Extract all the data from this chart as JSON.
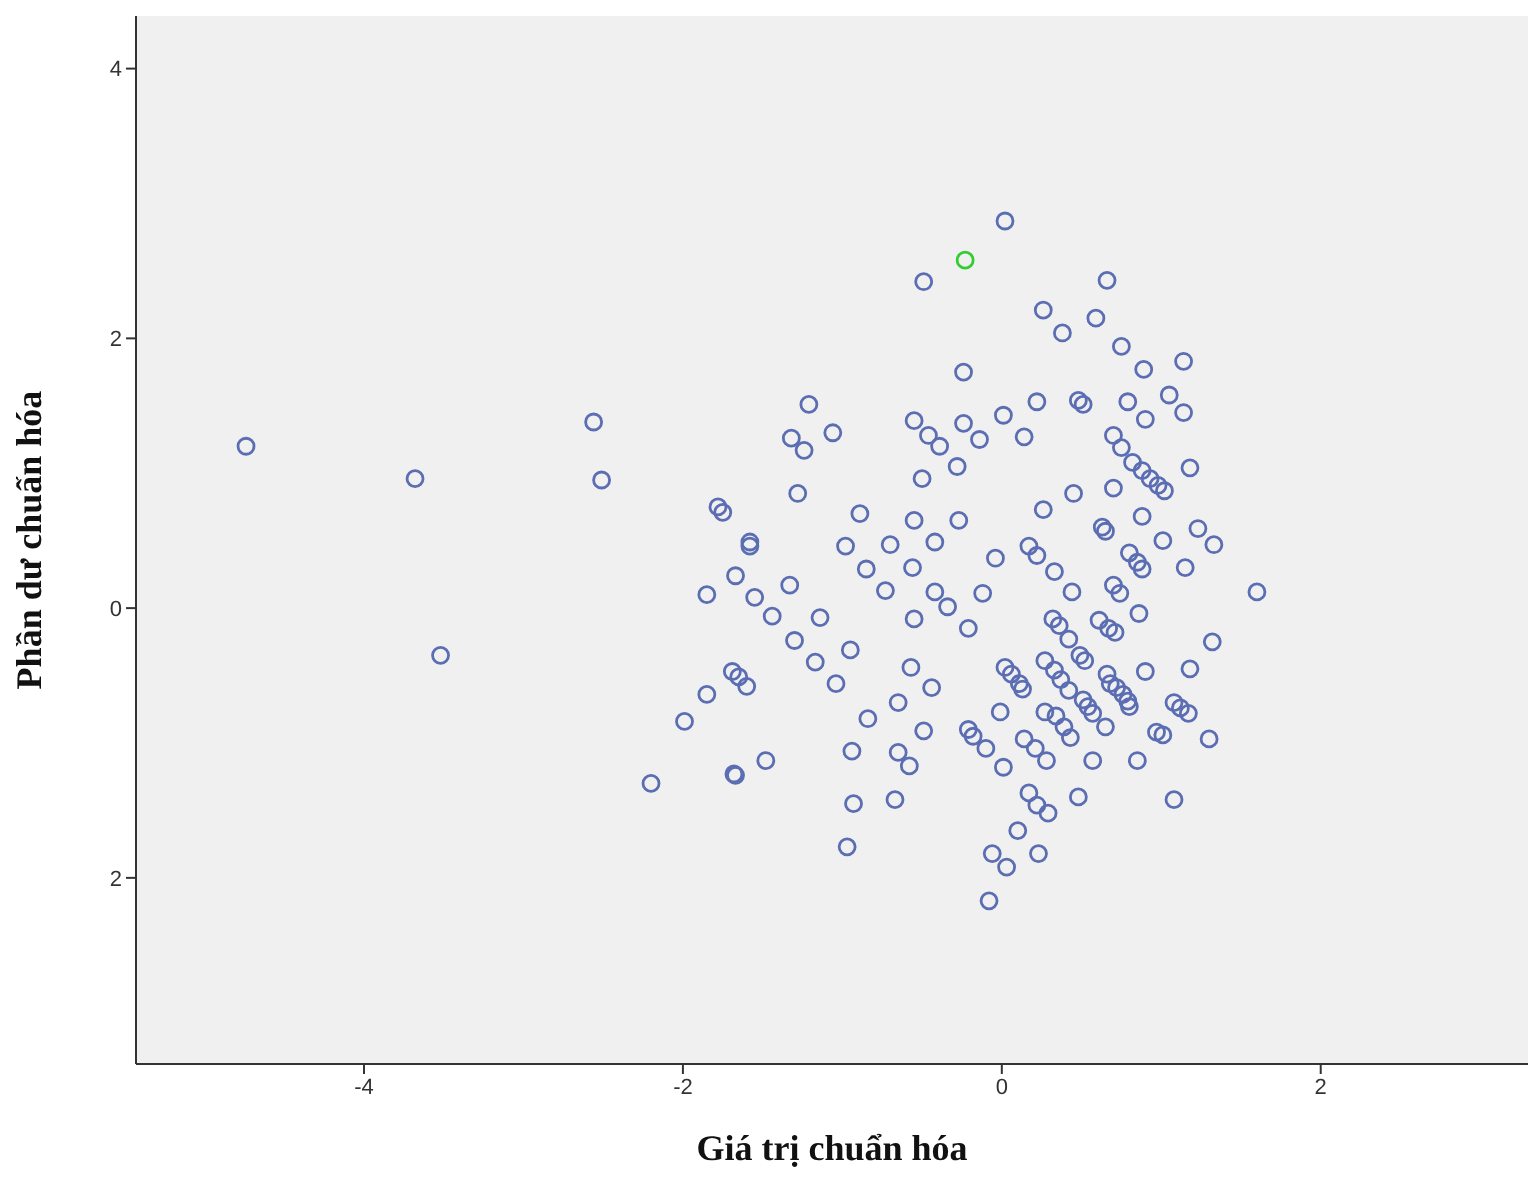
{
  "chart_data": {
    "type": "scatter",
    "xlabel": "Giá trị chuẩn hóa",
    "ylabel": "Phần dư chuẩn hóa",
    "xlim": [
      -5.43,
      3.3
    ],
    "ylim": [
      -3.38,
      4.39
    ],
    "xticks": [
      -4,
      -2,
      0,
      2
    ],
    "yticks": [
      4,
      2,
      0,
      {
        "value": -2,
        "label": "2"
      }
    ],
    "legend": false,
    "marker": "circle",
    "series": [
      {
        "color": "#5b6db3",
        "x": [
          -4.74,
          -3.68,
          -3.52,
          -2.56,
          -2.51,
          -2.2,
          -1.99,
          -1.85,
          -1.85,
          -1.78,
          -1.75,
          -1.67,
          -1.69,
          -1.65,
          -1.6,
          -1.68,
          -1.67,
          -1.58,
          -1.58,
          -1.55,
          -1.48,
          -1.44,
          -1.33,
          -1.32,
          -1.24,
          -1.21,
          -1.28,
          -1.3,
          -1.14,
          -1.17,
          -1.06,
          -1.04,
          -0.98,
          -0.95,
          -0.94,
          -0.93,
          -0.97,
          -0.89,
          -0.85,
          -0.84,
          -0.73,
          -0.7,
          -0.65,
          -0.65,
          -0.67,
          -0.58,
          -0.57,
          -0.55,
          -0.56,
          -0.55,
          -0.55,
          -0.5,
          -0.49,
          -0.46,
          -0.49,
          -0.44,
          -0.42,
          -0.42,
          -0.39,
          -0.34,
          -0.28,
          -0.27,
          -0.24,
          -0.24,
          -0.21,
          -0.21,
          -0.18,
          -0.14,
          -0.12,
          -0.1,
          -0.08,
          -0.06,
          -0.04,
          -0.01,
          0.01,
          0.01,
          0.02,
          0.03,
          0.02,
          0.06,
          0.1,
          0.11,
          0.13,
          0.14,
          0.14,
          0.17,
          0.17,
          0.21,
          0.22,
          0.22,
          0.22,
          0.23,
          0.26,
          0.26,
          0.27,
          0.27,
          0.28,
          0.29,
          0.32,
          0.33,
          0.33,
          0.34,
          0.36,
          0.38,
          0.37,
          0.39,
          0.42,
          0.42,
          0.43,
          0.44,
          0.45,
          0.48,
          0.48,
          0.51,
          0.49,
          0.52,
          0.51,
          0.54,
          0.57,
          0.57,
          0.59,
          0.61,
          0.63,
          0.65,
          0.66,
          0.66,
          0.65,
          0.67,
          0.68,
          0.7,
          0.7,
          0.71,
          0.7,
          0.72,
          0.74,
          0.75,
          0.75,
          0.76,
          0.79,
          0.79,
          0.8,
          0.8,
          0.82,
          0.85,
          0.85,
          0.86,
          0.88,
          0.88,
          0.88,
          0.9,
          0.89,
          0.9,
          0.93,
          0.98,
          0.97,
          1.01,
          1.01,
          1.02,
          1.05,
          1.08,
          1.08,
          1.12,
          1.14,
          1.14,
          1.15,
          1.17,
          1.18,
          1.18,
          1.23,
          1.3,
          1.33,
          1.32,
          1.6
        ],
        "values": [
          1.2,
          0.96,
          -0.35,
          1.38,
          0.95,
          -1.3,
          -0.84,
          0.1,
          -0.64,
          0.75,
          0.71,
          0.24,
          -0.47,
          -0.51,
          -0.58,
          -1.23,
          -1.24,
          0.49,
          0.46,
          0.08,
          -1.13,
          -0.06,
          0.17,
          1.26,
          1.17,
          1.51,
          0.85,
          -0.24,
          -0.07,
          -0.4,
          1.3,
          -0.56,
          0.46,
          -0.31,
          -1.06,
          -1.45,
          -1.77,
          0.7,
          0.29,
          -0.82,
          0.13,
          0.47,
          -0.7,
          -1.07,
          -1.42,
          -1.17,
          -0.44,
          0.65,
          0.3,
          -0.08,
          1.39,
          0.96,
          2.42,
          1.28,
          -0.91,
          -0.59,
          0.49,
          0.12,
          1.2,
          0.01,
          1.05,
          0.65,
          1.75,
          1.37,
          -0.15,
          -0.9,
          -0.95,
          1.25,
          0.11,
          -1.04,
          -2.17,
          -1.82,
          0.37,
          -0.77,
          1.43,
          -1.18,
          2.87,
          -1.92,
          -0.44,
          -0.49,
          -1.65,
          -0.56,
          -0.6,
          1.27,
          -0.97,
          0.46,
          -1.37,
          -1.04,
          1.53,
          0.39,
          -1.46,
          -1.82,
          0.73,
          2.21,
          -0.39,
          -0.77,
          -1.13,
          -1.52,
          -0.08,
          0.27,
          -0.46,
          -0.8,
          -0.13,
          2.04,
          -0.53,
          -0.88,
          -0.23,
          -0.61,
          -0.96,
          0.12,
          0.85,
          -1.4,
          1.54,
          1.51,
          -0.35,
          -0.39,
          -0.68,
          -0.73,
          -1.13,
          -0.78,
          2.15,
          -0.09,
          0.6,
          0.57,
          -0.49,
          2.43,
          -0.88,
          -0.15,
          -0.56,
          1.28,
          0.89,
          -0.18,
          0.17,
          -0.59,
          0.11,
          1.19,
          1.94,
          -0.64,
          1.53,
          -0.69,
          0.41,
          -0.73,
          1.08,
          0.34,
          -1.13,
          -0.04,
          0.68,
          0.29,
          1.02,
          1.4,
          1.77,
          -0.47,
          0.96,
          0.91,
          -0.92,
          0.5,
          -0.94,
          0.87,
          1.58,
          -0.7,
          -1.42,
          -0.74,
          1.45,
          1.83,
          0.3,
          -0.78,
          1.04,
          -0.45,
          0.59,
          -0.97,
          0.47,
          -0.25,
          0.12
        ]
      },
      {
        "color": "#33cc33",
        "x": [
          -0.23
        ],
        "values": [
          2.58
        ]
      }
    ]
  }
}
